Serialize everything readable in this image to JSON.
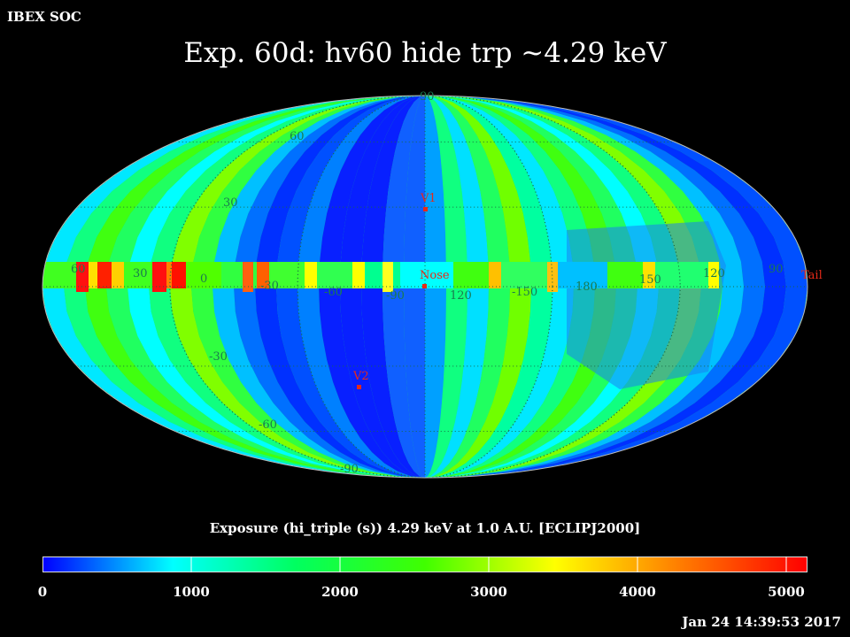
{
  "header": {
    "corner_label": "IBEX SOC",
    "title": "Exp.   60d: hv60 hide trp ~4.29 keV"
  },
  "map": {
    "projection": "Mollweide",
    "latitude_labels": [
      "90",
      "60",
      "30",
      "-30",
      "-60",
      "-90"
    ],
    "longitude_labels": [
      "60",
      "30",
      "0",
      "-30",
      "-60",
      "-90",
      "120",
      "-150",
      "180",
      "150",
      "120",
      "90"
    ],
    "markers": [
      {
        "name": "V1",
        "color": "#e62a18"
      },
      {
        "name": "Nose",
        "color": "#e62a18"
      },
      {
        "name": "Tail",
        "color": "#e62a18"
      },
      {
        "name": "V2",
        "color": "#e62a18"
      }
    ],
    "grid": "dotted"
  },
  "colorbar": {
    "title": "Exposure (hi_triple (s))  4.29 keV at 1.0 A.U. [ECLIPJ2000]",
    "ticks": [
      "0",
      "1000",
      "2000",
      "3000",
      "4000",
      "5000"
    ],
    "range": [
      0,
      5200
    ],
    "colors": [
      "#0000ff",
      "#00ffff",
      "#00ff60",
      "#40ff00",
      "#ffff00",
      "#ff8000",
      "#ff0000"
    ]
  },
  "footer": {
    "timestamp": "Jan 24 14:39:53 2017"
  }
}
